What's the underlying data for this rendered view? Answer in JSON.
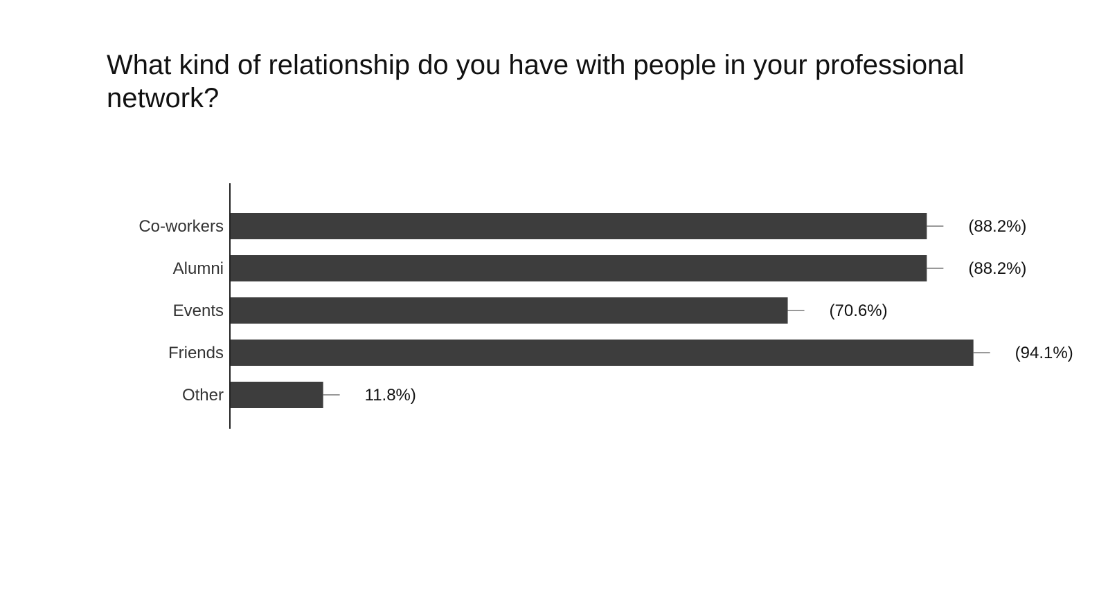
{
  "chart_data": {
    "type": "bar",
    "orientation": "horizontal",
    "title": "What kind of relationship do you have with people in your professional network?",
    "categories": [
      "Co-workers",
      "Alumni",
      "Events",
      "Friends",
      "Other"
    ],
    "values": [
      88.2,
      88.2,
      70.6,
      94.1,
      11.8
    ],
    "data_labels": [
      "(88.2%)",
      "(88.2%)",
      "(70.6%)",
      "(94.1%)",
      "11.8%)"
    ],
    "xlim": [
      0,
      100
    ],
    "grid": false,
    "legend": "none",
    "bar_color": "#3d3d3d",
    "axis_color": "#222222",
    "whisker_color": "#999999"
  }
}
